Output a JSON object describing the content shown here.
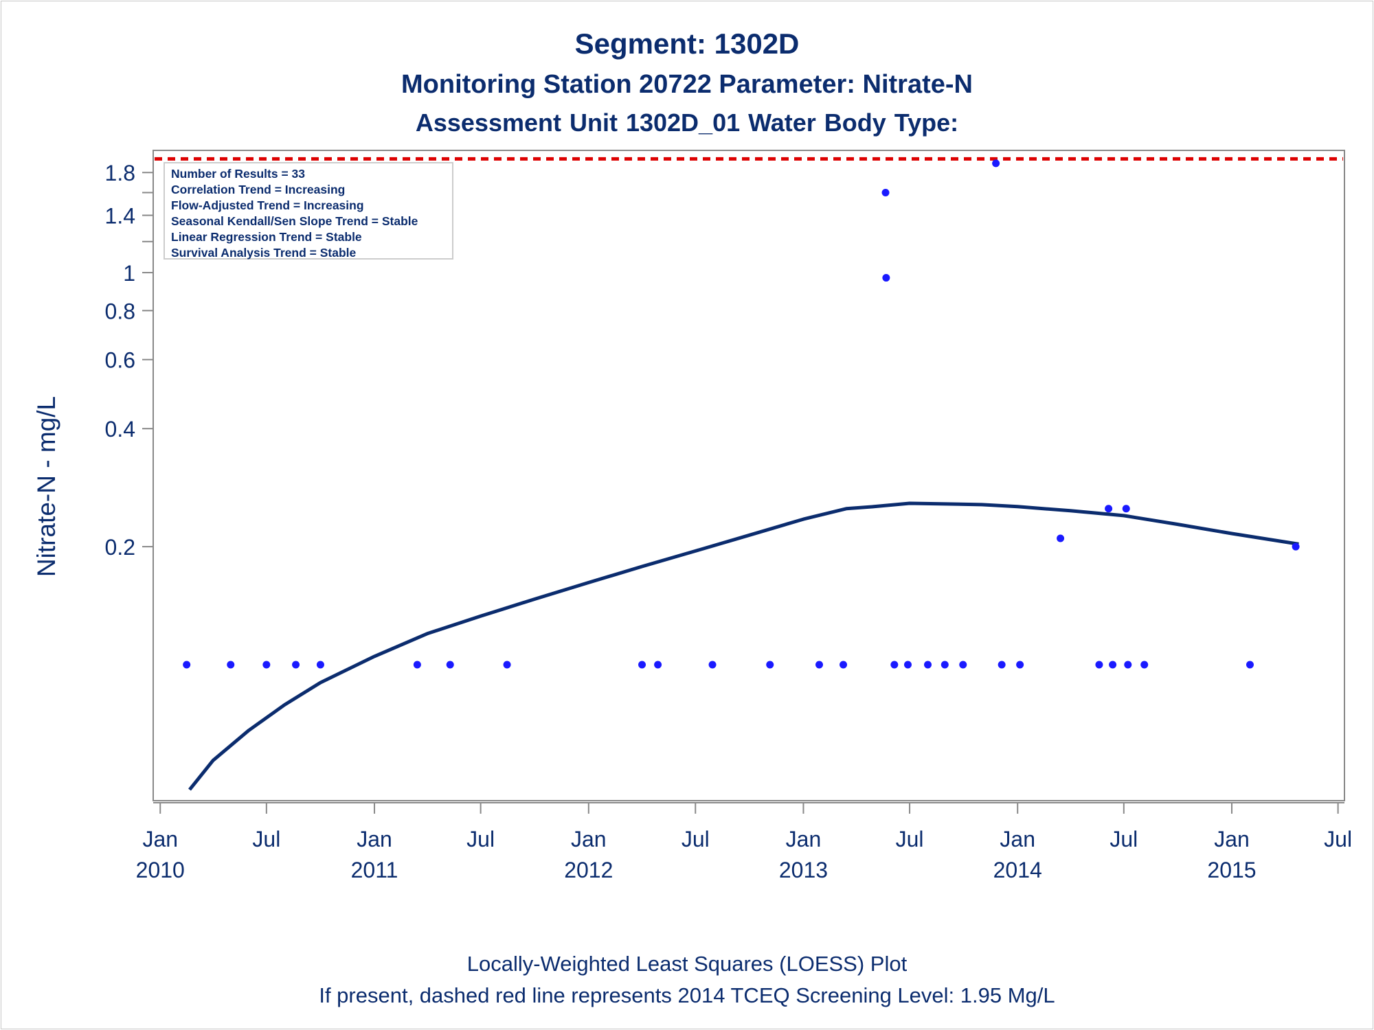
{
  "titles": {
    "line1": "Segment: 1302D",
    "line2": "Monitoring Station 20722 Parameter: Nitrate-N",
    "line3": "Assessment Unit 1302D_01   Water Body Type:"
  },
  "footer": {
    "line1": "Locally-Weighted Least Squares (LOESS) Plot",
    "line2": "If present, dashed red line represents 2014 TCEQ Screening Level: 1.95 Mg/L"
  },
  "colors": {
    "text": "#0b2c6e",
    "points": "#1a1aff",
    "loess": "#0b2c6e",
    "screening_line": "#dd0000",
    "axis": "#888888"
  },
  "chart_data": {
    "type": "scatter",
    "ylabel": "Nitrate-N - mg/L",
    "y_scale": "log",
    "ylim": [
      0.045,
      2.05
    ],
    "xlim": [
      "2009-12-20",
      "2015-07-12"
    ],
    "y_ticks": [
      {
        "value": 1.8,
        "label": "1.8"
      },
      {
        "value": 1.6,
        "label": ""
      },
      {
        "value": 1.4,
        "label": "1.4"
      },
      {
        "value": 1.2,
        "label": ""
      },
      {
        "value": 1.0,
        "label": "1"
      },
      {
        "value": 0.8,
        "label": "0.8"
      },
      {
        "value": 0.6,
        "label": "0.6"
      },
      {
        "value": 0.4,
        "label": "0.4"
      },
      {
        "value": 0.2,
        "label": "0.2"
      }
    ],
    "x_ticks": [
      {
        "date": "2010-01-01",
        "line1": "Jan",
        "line2": "2010"
      },
      {
        "date": "2010-07-01",
        "line1": "Jul",
        "line2": ""
      },
      {
        "date": "2011-01-01",
        "line1": "Jan",
        "line2": "2011"
      },
      {
        "date": "2011-07-01",
        "line1": "Jul",
        "line2": ""
      },
      {
        "date": "2012-01-01",
        "line1": "Jan",
        "line2": "2012"
      },
      {
        "date": "2012-07-01",
        "line1": "Jul",
        "line2": ""
      },
      {
        "date": "2013-01-01",
        "line1": "Jan",
        "line2": "2013"
      },
      {
        "date": "2013-07-01",
        "line1": "Jul",
        "line2": ""
      },
      {
        "date": "2014-01-01",
        "line1": "Jan",
        "line2": "2014"
      },
      {
        "date": "2014-07-01",
        "line1": "Jul",
        "line2": ""
      },
      {
        "date": "2015-01-01",
        "line1": "Jan",
        "line2": "2015"
      },
      {
        "date": "2015-07-01",
        "line1": "Jul",
        "line2": ""
      }
    ],
    "screening_level": 1.95,
    "legend_position": "top-left",
    "stats": [
      "Number of Results = 33",
      "Correlation Trend = Increasing",
      "Flow-Adjusted Trend = Increasing",
      "Seasonal Kendall/Sen Slope Trend = Stable",
      "Linear Regression Trend = Stable",
      "Survival Analysis Trend = Stable"
    ],
    "series": [
      {
        "type": "scatter",
        "points": [
          [
            "2010-02-15",
            0.1
          ],
          [
            "2010-05-01",
            0.1
          ],
          [
            "2010-07-01",
            0.1
          ],
          [
            "2010-08-20",
            0.1
          ],
          [
            "2010-10-01",
            0.1
          ],
          [
            "2011-03-15",
            0.1
          ],
          [
            "2011-05-10",
            0.1
          ],
          [
            "2011-08-15",
            0.1
          ],
          [
            "2012-04-01",
            0.1
          ],
          [
            "2012-04-28",
            0.1
          ],
          [
            "2012-07-30",
            0.1
          ],
          [
            "2012-11-05",
            0.1
          ],
          [
            "2013-01-28",
            0.1
          ],
          [
            "2013-03-10",
            0.1
          ],
          [
            "2013-05-21",
            1.6
          ],
          [
            "2013-05-22",
            0.97
          ],
          [
            "2013-06-05",
            0.1
          ],
          [
            "2013-06-28",
            0.1
          ],
          [
            "2013-08-01",
            0.1
          ],
          [
            "2013-08-30",
            0.1
          ],
          [
            "2013-09-30",
            0.1
          ],
          [
            "2013-11-25",
            1.9
          ],
          [
            "2013-12-05",
            0.1
          ],
          [
            "2014-01-05",
            0.1
          ],
          [
            "2014-03-15",
            0.21
          ],
          [
            "2014-05-20",
            0.1
          ],
          [
            "2014-06-12",
            0.1
          ],
          [
            "2014-07-08",
            0.1
          ],
          [
            "2014-06-05",
            0.25
          ],
          [
            "2014-07-05",
            0.25
          ],
          [
            "2014-08-05",
            0.1
          ],
          [
            "2015-02-01",
            0.1
          ],
          [
            "2015-04-20",
            0.2
          ]
        ]
      },
      {
        "type": "line",
        "name": "",
        "points": [
          [
            "2010-02-20",
            0.048
          ],
          [
            "2010-04-01",
            0.057
          ],
          [
            "2010-06-01",
            0.068
          ],
          [
            "2010-08-01",
            0.079
          ],
          [
            "2010-10-01",
            0.09
          ],
          [
            "2011-01-01",
            0.105
          ],
          [
            "2011-04-01",
            0.12
          ],
          [
            "2011-07-01",
            0.133
          ],
          [
            "2011-10-01",
            0.147
          ],
          [
            "2012-01-01",
            0.162
          ],
          [
            "2012-04-01",
            0.178
          ],
          [
            "2012-07-01",
            0.195
          ],
          [
            "2012-10-01",
            0.214
          ],
          [
            "2013-01-01",
            0.235
          ],
          [
            "2013-03-15",
            0.25
          ],
          [
            "2013-05-01",
            0.253
          ],
          [
            "2013-07-01",
            0.258
          ],
          [
            "2013-09-01",
            0.257
          ],
          [
            "2013-11-01",
            0.256
          ],
          [
            "2014-01-01",
            0.253
          ],
          [
            "2014-04-01",
            0.247
          ],
          [
            "2014-07-01",
            0.24
          ],
          [
            "2014-10-01",
            0.228
          ],
          [
            "2015-01-01",
            0.216
          ],
          [
            "2015-04-25",
            0.203
          ]
        ]
      }
    ]
  }
}
